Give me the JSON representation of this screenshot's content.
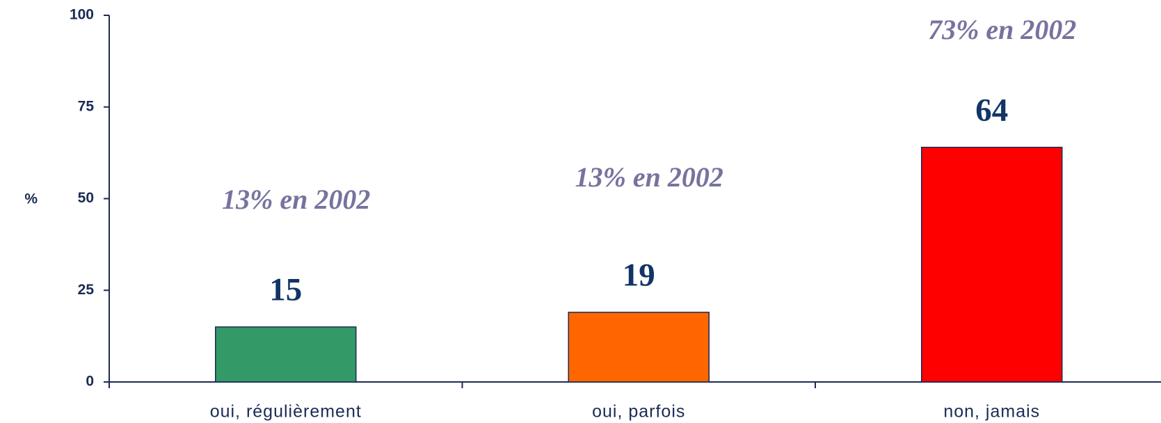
{
  "chart_data": {
    "type": "bar",
    "y_label": "%",
    "categories": [
      "oui, régulièrement",
      "oui, parfois",
      "non, jamais"
    ],
    "values": [
      15,
      19,
      64
    ],
    "colors": [
      "#339966",
      "#ff6600",
      "#ff0000"
    ],
    "annotations": [
      "13% en 2002",
      "13% en 2002",
      "73% en 2002"
    ],
    "ylim": [
      0,
      100
    ],
    "yticks": [
      0,
      25,
      50,
      75,
      100
    ],
    "grid": false
  }
}
